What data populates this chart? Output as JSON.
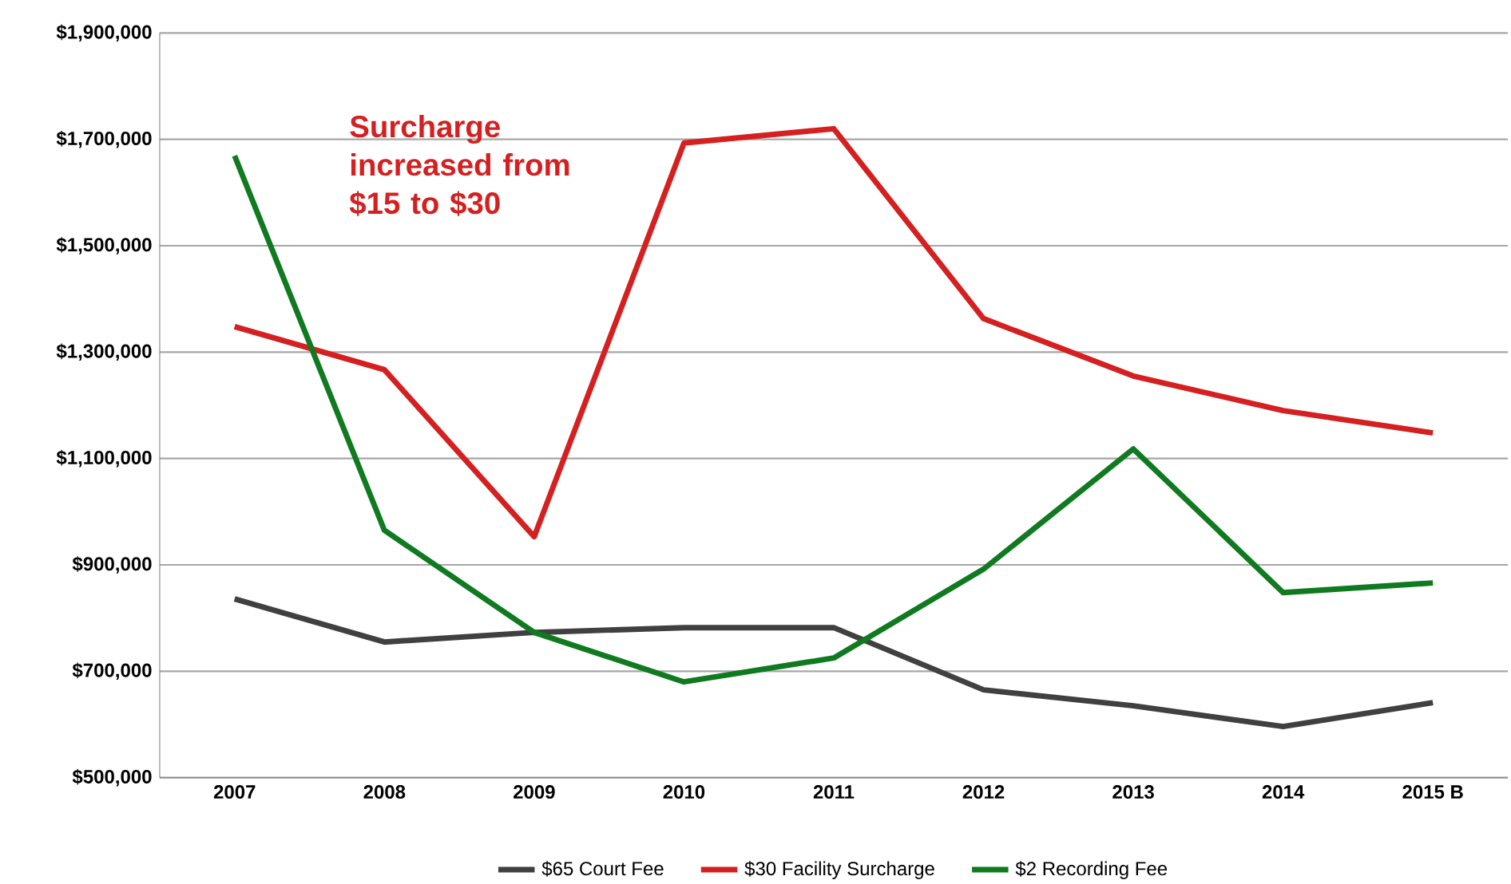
{
  "chart_data": {
    "type": "line",
    "categories": [
      "2007",
      "2008",
      "2009",
      "2010",
      "2011",
      "2012",
      "2013",
      "2014",
      "2015 B"
    ],
    "series": [
      {
        "name": "$65 Court Fee",
        "color": "#404040",
        "values": [
          836000,
          755000,
          773000,
          782000,
          782000,
          665000,
          635000,
          596000,
          641000
        ]
      },
      {
        "name": "$30 Facility Surcharge",
        "color": "#d42020",
        "values": [
          1348000,
          1267000,
          953000,
          1693000,
          1720000,
          1363000,
          1255000,
          1190000,
          1148000
        ]
      },
      {
        "name": "$2 Recording Fee",
        "color": "#0f7a1f",
        "values": [
          1669000,
          965000,
          773000,
          680000,
          725000,
          892000,
          1118000,
          848000,
          866000
        ]
      }
    ],
    "ylim": [
      500000,
      1900000
    ],
    "yticks": [
      {
        "value": 500000,
        "label": "$500,000"
      },
      {
        "value": 700000,
        "label": "$700,000"
      },
      {
        "value": 900000,
        "label": "$900,000"
      },
      {
        "value": 1100000,
        "label": "$1,100,000"
      },
      {
        "value": 1300000,
        "label": "$1,300,000"
      },
      {
        "value": 1500000,
        "label": "$1,500,000"
      },
      {
        "value": 1700000,
        "label": "$1,700,000"
      },
      {
        "value": 1900000,
        "label": "$1,900,000"
      }
    ],
    "annotations": [
      "Surcharge increased from $15 to $30"
    ],
    "grid": "y",
    "legend": "bottom",
    "marker": "none",
    "line_style": "solid"
  }
}
